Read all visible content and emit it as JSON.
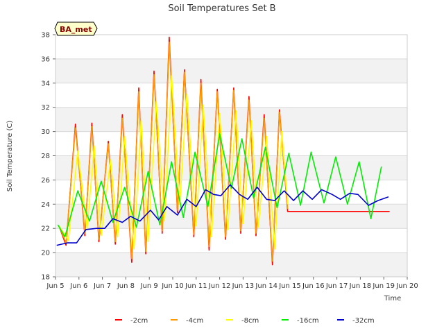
{
  "chart_data": {
    "type": "line",
    "title": "Soil Temperatures Set B",
    "xlabel": "Time",
    "ylabel": "Soil Temperature (C)",
    "badge": "BA_met",
    "xlim": [
      5,
      20
    ],
    "ylim": [
      18,
      38
    ],
    "xticks": [
      "Jun 5",
      "Jun 6",
      "Jun 7",
      "Jun 8",
      "Jun 9",
      "Jun 10",
      "Jun 11",
      "Jun 12",
      "Jun 13",
      "Jun 14",
      "Jun 15",
      "Jun 16",
      "Jun 17",
      "Jun 18",
      "Jun 19",
      "Jun 20"
    ],
    "yticks": [
      "18",
      "20",
      "22",
      "24",
      "26",
      "28",
      "30",
      "32",
      "34",
      "36",
      "38"
    ],
    "grid": true,
    "legend_position": "bottom",
    "series": [
      {
        "name": "-2cm",
        "color": "#ff0000",
        "x": [
          5.15,
          5.45,
          5.85,
          6.25,
          6.55,
          6.85,
          7.25,
          7.55,
          7.85,
          8.25,
          8.55,
          8.85,
          9.2,
          9.55,
          9.85,
          10.2,
          10.5,
          10.9,
          11.2,
          11.55,
          11.9,
          12.25,
          12.6,
          12.9,
          13.25,
          13.55,
          13.9,
          14.25,
          14.55,
          14.9,
          15.25,
          15.55,
          15.9,
          16.25,
          16.55,
          16.9,
          17.25,
          17.55,
          17.9,
          18.25,
          18.55,
          18.9,
          19.25
        ],
        "y": [
          22.2,
          20.6,
          30.6,
          21.4,
          30.7,
          20.9,
          29.2,
          20.7,
          31.4,
          19.2,
          33.6,
          19.9,
          35.0,
          21.6,
          37.8,
          23.3,
          35.1,
          21.3,
          34.3,
          20.2,
          33.5,
          21.1,
          33.6,
          21.6,
          32.9,
          21.4,
          31.4,
          19.0,
          31.8,
          23.4,
          23.4,
          23.4,
          23.4,
          23.4,
          23.4,
          23.4,
          23.4,
          23.4,
          23.4,
          23.4,
          23.4,
          23.4,
          23.4
        ]
      },
      {
        "name": "-4cm",
        "color": "#ff9900",
        "x": [
          5.15,
          5.45,
          5.85,
          6.25,
          6.55,
          6.85,
          7.25,
          7.55,
          7.85,
          8.25,
          8.55,
          8.85,
          9.2,
          9.55,
          9.85,
          10.2,
          10.5,
          10.9,
          11.2,
          11.55,
          11.9,
          12.25,
          12.6,
          12.9,
          13.25,
          13.55,
          13.9,
          14.25,
          14.55,
          14.9
        ],
        "y": [
          22.2,
          20.8,
          30.3,
          21.6,
          30.4,
          21.1,
          29.0,
          20.9,
          31.1,
          19.5,
          33.3,
          20.1,
          34.7,
          21.8,
          37.4,
          23.5,
          34.9,
          21.5,
          34.0,
          20.5,
          33.3,
          21.3,
          33.4,
          21.8,
          32.6,
          21.6,
          31.1,
          19.3,
          31.6,
          23.6
        ]
      },
      {
        "name": "-8cm",
        "color": "#ffff00",
        "x": [
          5.15,
          5.55,
          5.95,
          6.35,
          6.65,
          6.95,
          7.35,
          7.65,
          7.95,
          8.35,
          8.65,
          8.95,
          9.3,
          9.65,
          9.95,
          10.3,
          10.6,
          11.0,
          11.3,
          11.65,
          12.0,
          12.35,
          12.7,
          13.0,
          13.35,
          13.65,
          14.0,
          14.35,
          14.65,
          14.9
        ],
        "y": [
          22.2,
          21.0,
          28.4,
          22.0,
          28.8,
          21.4,
          27.7,
          21.3,
          29.6,
          20.3,
          30.9,
          20.9,
          32.5,
          22.6,
          34.6,
          24.0,
          33.1,
          22.2,
          32.2,
          21.3,
          31.5,
          21.9,
          31.7,
          22.4,
          30.9,
          22.1,
          29.6,
          20.3,
          30.0,
          24.0
        ]
      },
      {
        "name": "-16cm",
        "color": "#00ee00",
        "x": [
          5.1,
          5.4,
          5.95,
          6.45,
          6.95,
          7.45,
          7.95,
          8.45,
          8.95,
          9.45,
          9.95,
          10.45,
          10.95,
          11.5,
          12.0,
          12.5,
          12.95,
          13.45,
          13.95,
          14.45,
          14.95,
          15.45,
          15.9,
          16.45,
          16.95,
          17.45,
          17.95,
          18.45,
          18.9
        ],
        "y": [
          22.3,
          21.3,
          25.1,
          22.6,
          25.9,
          22.5,
          25.4,
          22.1,
          26.7,
          22.3,
          27.5,
          22.9,
          28.3,
          23.8,
          29.8,
          25.3,
          29.4,
          24.5,
          28.7,
          23.7,
          28.2,
          23.9,
          28.3,
          24.1,
          27.9,
          24.0,
          27.5,
          22.8,
          27.1
        ]
      },
      {
        "name": "-32cm",
        "color": "#0000cc",
        "x": [
          5.05,
          5.5,
          5.9,
          6.3,
          6.75,
          7.1,
          7.45,
          7.85,
          8.2,
          8.6,
          9.05,
          9.4,
          9.75,
          10.2,
          10.6,
          11.0,
          11.4,
          11.75,
          12.05,
          12.45,
          12.85,
          13.2,
          13.6,
          14.0,
          14.35,
          14.75,
          15.15,
          15.55,
          15.95,
          16.35,
          16.8,
          17.15,
          17.55,
          17.9,
          18.35,
          18.75,
          19.2
        ],
        "y": [
          20.6,
          20.8,
          20.8,
          21.9,
          22.0,
          22.0,
          22.8,
          22.5,
          23.0,
          22.6,
          23.5,
          22.7,
          23.8,
          23.1,
          24.4,
          23.8,
          25.2,
          24.8,
          24.7,
          25.6,
          24.8,
          24.4,
          25.4,
          24.4,
          24.3,
          25.1,
          24.3,
          25.1,
          24.4,
          25.2,
          24.8,
          24.4,
          24.9,
          24.8,
          23.9,
          24.3,
          24.6
        ]
      }
    ]
  }
}
